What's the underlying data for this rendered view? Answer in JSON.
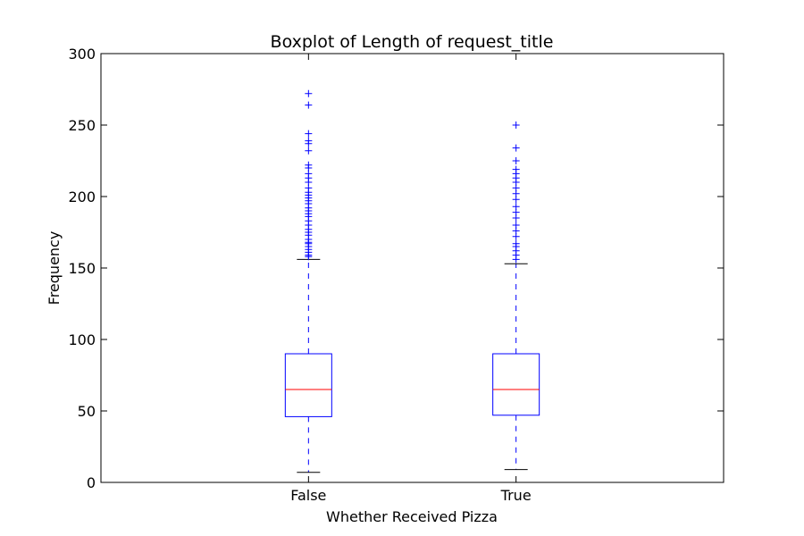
{
  "chart_data": {
    "type": "boxplot",
    "title": "Boxplot of Length of request_title",
    "xlabel": "Whether Received Pizza",
    "ylabel": "Frequency",
    "ylim": [
      0,
      300
    ],
    "yticks": [
      0,
      50,
      100,
      150,
      200,
      250,
      300
    ],
    "grid": false,
    "categories": [
      "False",
      "True"
    ],
    "boxes": [
      {
        "category": "False",
        "whisker_low": 7,
        "q1": 46,
        "median": 65,
        "q3": 90,
        "whisker_high": 156,
        "outliers": [
          158,
          159,
          161,
          163,
          165,
          167,
          168,
          170,
          173,
          175,
          177,
          180,
          183,
          186,
          188,
          190,
          192,
          195,
          197,
          199,
          201,
          203,
          206,
          210,
          213,
          216,
          220,
          222,
          232,
          237,
          239,
          244,
          264,
          272
        ]
      },
      {
        "category": "True",
        "whisker_low": 9,
        "q1": 47,
        "median": 65,
        "q3": 90,
        "whisker_high": 153,
        "outliers": [
          156,
          159,
          162,
          165,
          167,
          172,
          176,
          180,
          185,
          189,
          193,
          198,
          202,
          206,
          210,
          213,
          216,
          219,
          225,
          234,
          250
        ]
      }
    ],
    "colors": {
      "box": "#0000ff",
      "median": "#ff0000",
      "whisker": "#0000ff",
      "cap": "#000000",
      "outlier": "#0000ff",
      "axes": "#000000"
    }
  }
}
